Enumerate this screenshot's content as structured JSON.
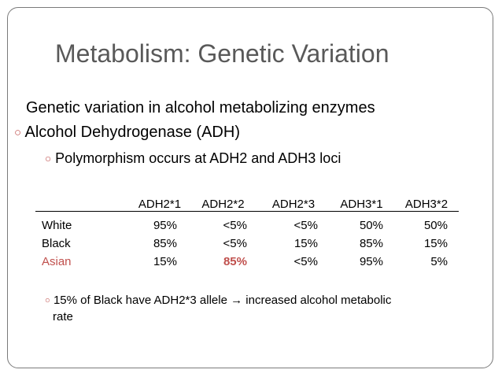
{
  "slide": {
    "title": "Metabolism: Genetic Variation",
    "heading": "Genetic variation in alcohol metabolizing enzymes",
    "bullet1": "Alcohol Dehydrogenase (ADH)",
    "bullet2": "Polymorphism occurs at ADH2 and ADH3 loci",
    "footnote_line1": "15% of Black have ADH2*3 allele → increased alcohol metabolic",
    "footnote_line2": "rate",
    "bullet_glyph": "○",
    "accent_color": "#c0504d"
  },
  "table": {
    "headers": [
      "",
      "ADH2*1",
      "ADH2*2",
      "ADH2*3",
      "ADH3*1",
      "ADH3*2"
    ],
    "rows": [
      {
        "group": "White",
        "values": [
          "95%",
          "<5%",
          "<5%",
          "50%",
          "50%"
        ]
      },
      {
        "group": "Black",
        "values": [
          "85%",
          "<5%",
          "15%",
          "85%",
          "15%"
        ]
      },
      {
        "group": "Asian",
        "values": [
          "15%",
          "85%",
          "<5%",
          "95%",
          "5%"
        ]
      }
    ]
  }
}
